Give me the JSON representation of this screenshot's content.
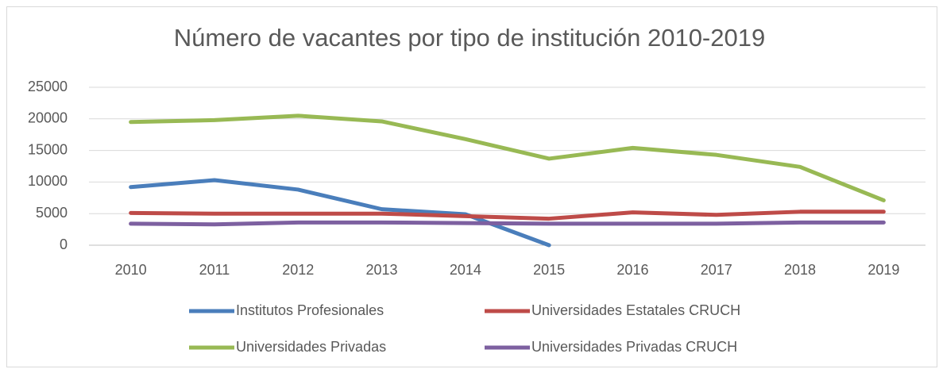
{
  "chart_data": {
    "type": "line",
    "title": "Número de vacantes por tipo de institución 2010-2019",
    "categories": [
      "2010",
      "2011",
      "2012",
      "2013",
      "2014",
      "2015",
      "2016",
      "2017",
      "2018",
      "2019"
    ],
    "series": [
      {
        "name": "Institutos Profesionales",
        "color": "#4a7ebb",
        "values": [
          9200,
          10300,
          8800,
          5700,
          4900,
          0,
          null,
          null,
          null,
          null
        ]
      },
      {
        "name": "Universidades Estatales CRUCH",
        "color": "#be4b48",
        "values": [
          5100,
          5000,
          5000,
          5000,
          4600,
          4200,
          5200,
          4800,
          5300,
          5300
        ]
      },
      {
        "name": "Universidades Privadas",
        "color": "#98b954",
        "values": [
          19500,
          19800,
          20500,
          19600,
          16800,
          13700,
          15400,
          14300,
          12400,
          7100
        ]
      },
      {
        "name": "Universidades Privadas CRUCH",
        "color": "#7d60a0",
        "values": [
          3400,
          3300,
          3600,
          3600,
          3500,
          3400,
          3400,
          3400,
          3600,
          3600
        ]
      }
    ],
    "ylim": [
      0,
      25000
    ],
    "yticks": [
      0,
      5000,
      10000,
      15000,
      20000,
      25000
    ],
    "grid": true,
    "legend": "bottom"
  }
}
